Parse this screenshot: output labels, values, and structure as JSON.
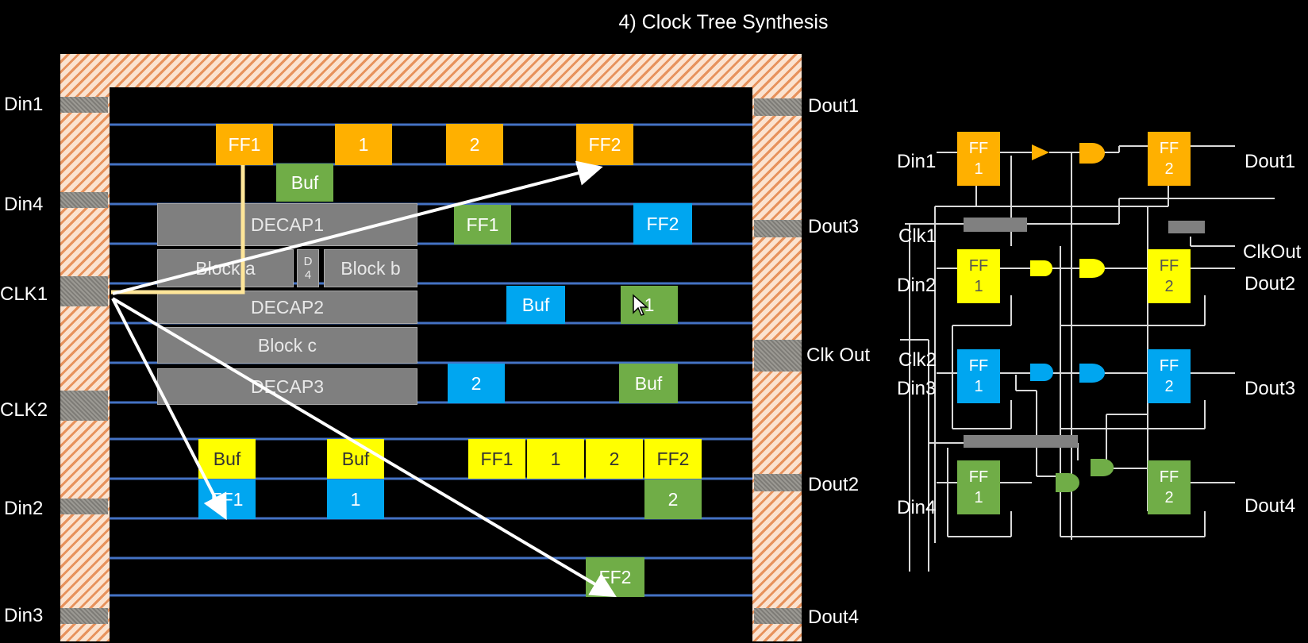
{
  "title": "4) Clock Tree Synthesis",
  "layout": {
    "left_ports": [
      "Din1",
      "Din4",
      "CLK1",
      "CLK2",
      "Din2",
      "Din3"
    ],
    "right_ports": [
      "Dout1",
      "Dout3",
      "Clk Out",
      "Dout2",
      "Dout4"
    ],
    "cells": {
      "ff1_orange": "FF1",
      "c1_orange": "1",
      "c2_orange": "2",
      "ff2_orange": "FF2",
      "buf_green_top": "Buf",
      "decap1": "DECAP1",
      "block_a": "Block a",
      "d4": "D\n4",
      "block_b": "Block b",
      "decap2": "DECAP2",
      "block_c": "Block c",
      "decap3": "DECAP3",
      "ff1_green": "FF1",
      "ff2_blue": "FF2",
      "buf_blue": "Buf",
      "c1_green": "1",
      "c2_blue": "2",
      "buf_green": "Buf",
      "buf_yellow_a": "Buf",
      "buf_yellow_b": "Buf",
      "ff1_yellow": "FF1",
      "c1_yellow": "1",
      "c2_yellow": "2",
      "ff2_yellow": "FF2",
      "ff1_blue": "FF1",
      "c1_blue": "1",
      "c2_green": "2",
      "ff2_green": "FF2"
    }
  },
  "schematic": {
    "left_labels": [
      "Din1",
      "Clk1",
      "Din2",
      "Clk2",
      "Din3",
      "Din4"
    ],
    "right_labels": [
      "Dout1",
      "ClkOut",
      "Dout2",
      "Dout3",
      "Dout4"
    ],
    "ff_top": "FF",
    "ff1_bottom": "1",
    "ff2_bottom": "2"
  },
  "colors": {
    "orange": "#ffb000",
    "yellow": "#ffff00",
    "blue": "#00a6f0",
    "green": "#70ad47",
    "gray": "#7f7f7f",
    "track": "#4472c4",
    "clock_net": "#ffe699"
  }
}
